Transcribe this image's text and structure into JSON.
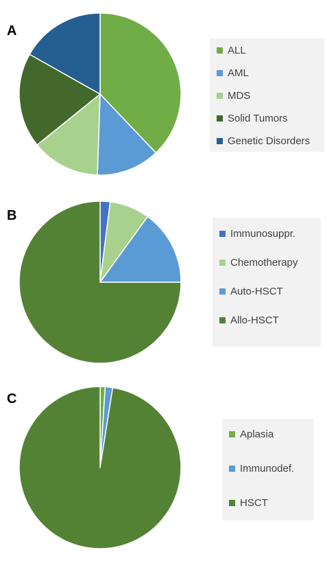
{
  "chart_data": [
    {
      "type": "pie",
      "panel_label": "A",
      "legend_position": "right",
      "slices": [
        {
          "label": "ALL",
          "value": 36,
          "color": "#70ad47"
        },
        {
          "label": "AML",
          "value": 12,
          "color": "#5b9bd5"
        },
        {
          "label": "MDS",
          "value": 13,
          "color": "#a9d18e"
        },
        {
          "label": "Solid Tumors",
          "value": 18,
          "color": "#43682b"
        },
        {
          "label": "Genetic Disorders",
          "value": 16,
          "color": "#255e91"
        }
      ]
    },
    {
      "type": "pie",
      "panel_label": "B",
      "legend_position": "right",
      "slices": [
        {
          "label": "Immunosuppr.",
          "value": 2,
          "color": "#4472c4"
        },
        {
          "label": "Chemotherapy",
          "value": 8,
          "color": "#a9d18e"
        },
        {
          "label": "Auto-HSCT",
          "value": 15,
          "color": "#5b9bd5"
        },
        {
          "label": "Allo-HSCT",
          "value": 75,
          "color": "#548235"
        }
      ]
    },
    {
      "type": "pie",
      "panel_label": "C",
      "legend_position": "right",
      "slices": [
        {
          "label": "Aplasia",
          "value": 1,
          "color": "#70ad47"
        },
        {
          "label": "Immunodef.",
          "value": 1.5,
          "color": "#5b9bd5"
        },
        {
          "label": "HSCT",
          "value": 97.5,
          "color": "#548235"
        }
      ]
    }
  ]
}
